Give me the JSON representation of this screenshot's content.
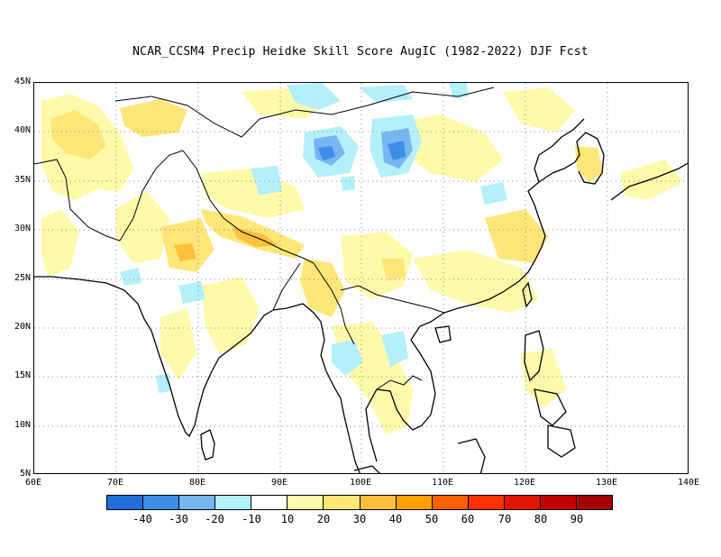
{
  "title": "NCAR_CCSM4 Precip Heidke Skill Score AugIC (1982-2022) DJF Fcst",
  "lat_labels": [
    "45N",
    "40N",
    "35N",
    "30N",
    "25N",
    "20N",
    "15N",
    "10N",
    "5N"
  ],
  "lon_labels": [
    "60E",
    "70E",
    "80E",
    "90E",
    "100E",
    "110E",
    "120E",
    "130E",
    "140E"
  ],
  "colorbar": {
    "colors": [
      "#1e6fdc",
      "#3c8ee6",
      "#78b6f2",
      "#b4f0fa",
      "#ffffff",
      "#fffaaa",
      "#ffe678",
      "#ffc03c",
      "#ffa000",
      "#ff6000",
      "#ff3200",
      "#e11400",
      "#c00000",
      "#a50000"
    ],
    "labels": [
      "-40",
      "-30",
      "-20",
      "-10",
      "10",
      "20",
      "30",
      "40",
      "50",
      "60",
      "70",
      "80",
      "90"
    ]
  },
  "map": {
    "lon_range": [
      60,
      140
    ],
    "lat_range": [
      5,
      45
    ],
    "gridlines": "dotted"
  }
}
